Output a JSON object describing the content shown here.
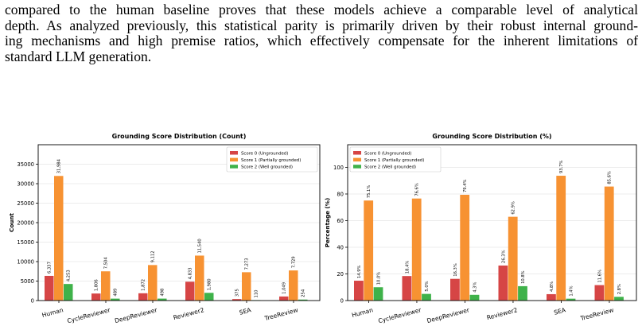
{
  "paragraph": {
    "lines": [
      "compared to the human baseline proves that these models achieve a comparable level of analytical",
      "depth. As analyzed previously, this statistical parity is primarily driven by their robust internal ground-",
      "ing mechanisms and high premise ratios, which effectively compensate for the inherent limitations of",
      "standard LLM generation."
    ]
  },
  "chart_data": [
    {
      "type": "bar",
      "title": "Grounding Score Distribution (Count)",
      "xlabel": "",
      "ylabel": "Count",
      "ylim": [
        0,
        40000
      ],
      "yticks": [
        0,
        5000,
        10000,
        15000,
        20000,
        25000,
        30000,
        35000
      ],
      "ytick_labels": [
        "0",
        "5000",
        "10000",
        "15000",
        "20000",
        "25000",
        "30000",
        "35000"
      ],
      "grid": true,
      "legend": "top-right",
      "categories": [
        "Human",
        "CycleReviewer",
        "DeepReviewer",
        "Reviewer2",
        "SEA",
        "TreeReview"
      ],
      "series": [
        {
          "name": "Score 0 (Ungrounded)",
          "color": "#d64545",
          "values": [
            6337,
            1806,
            1872,
            4833,
            375,
            1049
          ],
          "labels": [
            "6,337",
            "1,806",
            "1,872",
            "4,833",
            "375",
            "1,049"
          ]
        },
        {
          "name": "Score 1 (Partially grounded)",
          "color": "#f79232",
          "values": [
            31984,
            7504,
            9112,
            11540,
            7273,
            7729
          ],
          "labels": [
            "31,984",
            "7,504",
            "9,112",
            "11,540",
            "7,273",
            "7,729"
          ]
        },
        {
          "name": "Score 2 (Well grounded)",
          "color": "#3fb24a",
          "values": [
            4253,
            489,
            498,
            1980,
            110,
            254
          ],
          "labels": [
            "4,253",
            "489",
            "498",
            "1,980",
            "110",
            "254"
          ]
        }
      ]
    },
    {
      "type": "bar",
      "title": "Grounding Score Distribution (%)",
      "xlabel": "",
      "ylabel": "Percentage (%)",
      "ylim": [
        0,
        117
      ],
      "yticks": [
        0,
        20,
        40,
        60,
        80,
        100
      ],
      "ytick_labels": [
        "0",
        "20",
        "40",
        "60",
        "80",
        "100"
      ],
      "grid": true,
      "legend": "top-left",
      "categories": [
        "Human",
        "CycleReviewer",
        "DeepReviewer",
        "Reviewer2",
        "SEA",
        "TreeReview"
      ],
      "series": [
        {
          "name": "Score 0 (Ungrounded)",
          "color": "#d64545",
          "values": [
            14.9,
            18.4,
            16.3,
            26.3,
            4.8,
            11.6
          ],
          "labels": [
            "14.9%",
            "18.4%",
            "16.3%",
            "26.3%",
            "4.8%",
            "11.6%"
          ]
        },
        {
          "name": "Score 1 (Partially grounded)",
          "color": "#f79232",
          "values": [
            75.1,
            76.6,
            79.4,
            62.9,
            93.7,
            85.6
          ],
          "labels": [
            "75.1%",
            "76.6%",
            "79.4%",
            "62.9%",
            "93.7%",
            "85.6%"
          ]
        },
        {
          "name": "Score 2 (Well grounded)",
          "color": "#3fb24a",
          "values": [
            10.0,
            5.0,
            4.3,
            10.8,
            1.4,
            2.8
          ],
          "labels": [
            "10.0%",
            "5.0%",
            "4.3%",
            "10.8%",
            "1.4%",
            "2.8%"
          ]
        }
      ]
    }
  ]
}
